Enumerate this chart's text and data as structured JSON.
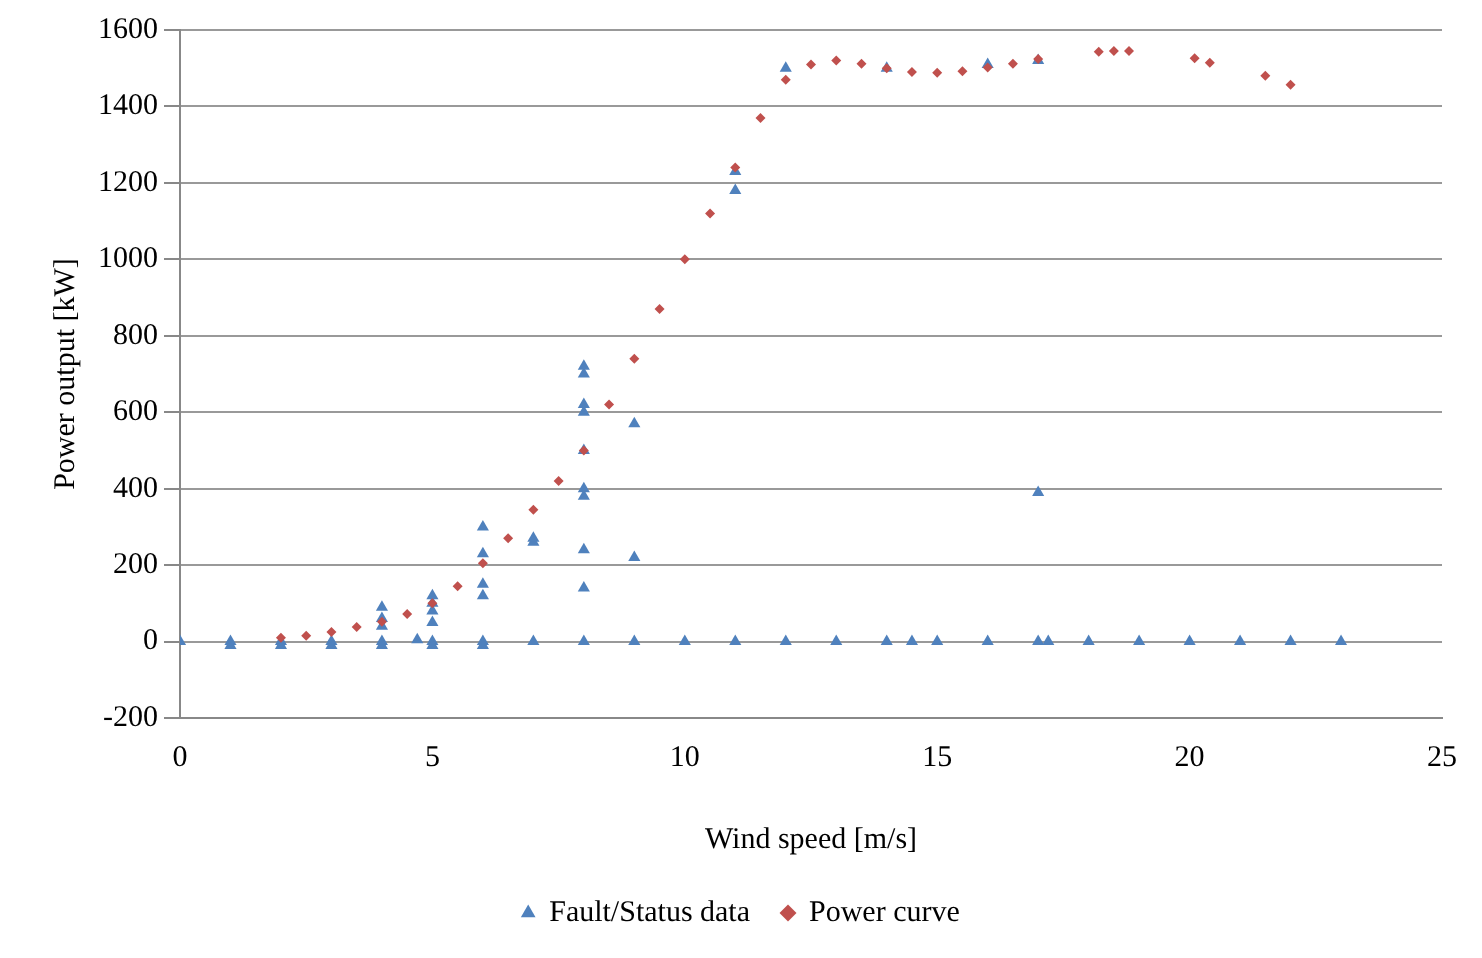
{
  "chart_data": {
    "type": "scatter",
    "xlabel": "Wind speed [m/s]",
    "ylabel": "Power output [kW]",
    "xlim": [
      0,
      25
    ],
    "xticks": [
      0,
      5,
      10,
      15,
      20,
      25
    ],
    "ylim": [
      -200,
      1600
    ],
    "yticks": [
      -200,
      0,
      200,
      400,
      600,
      800,
      1000,
      1200,
      1400,
      1600
    ],
    "grid": "y",
    "legend": "bottom",
    "series": [
      {
        "name": "Fault/Status data",
        "color": "#4f81bd",
        "marker": "triangle",
        "x": [
          0,
          1,
          1,
          2,
          2,
          3,
          3,
          4,
          4,
          4,
          4,
          4,
          4.7,
          5,
          5,
          5,
          5,
          5,
          5,
          6,
          6,
          6,
          6,
          6,
          6,
          7,
          7,
          7,
          8,
          8,
          8,
          8,
          8,
          8,
          8,
          8,
          8,
          8,
          9,
          9,
          9,
          10,
          11,
          11,
          11,
          12,
          12,
          13,
          14,
          14,
          14.5,
          15,
          16,
          16,
          17,
          17,
          17,
          17.2,
          18,
          19,
          20,
          21,
          22,
          23
        ],
        "values": [
          0,
          0,
          -10,
          0,
          -10,
          0,
          -10,
          0,
          -10,
          40,
          60,
          90,
          5,
          0,
          -10,
          50,
          80,
          100,
          120,
          0,
          -10,
          120,
          150,
          230,
          300,
          0,
          260,
          270,
          0,
          140,
          240,
          380,
          400,
          500,
          600,
          620,
          700,
          720,
          0,
          220,
          570,
          0,
          0,
          1180,
          1230,
          0,
          1500,
          0,
          0,
          1500,
          0,
          0,
          0,
          1510,
          0,
          390,
          1520,
          0,
          0,
          0,
          0,
          0,
          0,
          0
        ]
      },
      {
        "name": "Power curve",
        "color": "#c0504d",
        "marker": "diamond",
        "x": [
          2,
          2.5,
          3,
          3.5,
          4,
          4.5,
          5,
          5.5,
          6,
          6.5,
          7,
          7.5,
          8,
          8.5,
          9,
          9.5,
          10,
          10.5,
          11,
          11.5,
          12,
          12.5,
          13,
          13.5,
          14,
          14.5,
          15,
          15.5,
          16,
          16.5,
          17,
          18.2,
          18.5,
          18.8,
          20.1,
          20.4,
          21.5,
          22
        ],
        "values": [
          10,
          15,
          25,
          38,
          52,
          72,
          100,
          145,
          205,
          270,
          345,
          420,
          500,
          620,
          740,
          870,
          1000,
          1120,
          1240,
          1370,
          1470,
          1510,
          1520,
          1512,
          1500,
          1490,
          1488,
          1492,
          1502,
          1512,
          1524,
          1543,
          1545,
          1545,
          1526,
          1514,
          1480,
          1457
        ]
      }
    ]
  }
}
